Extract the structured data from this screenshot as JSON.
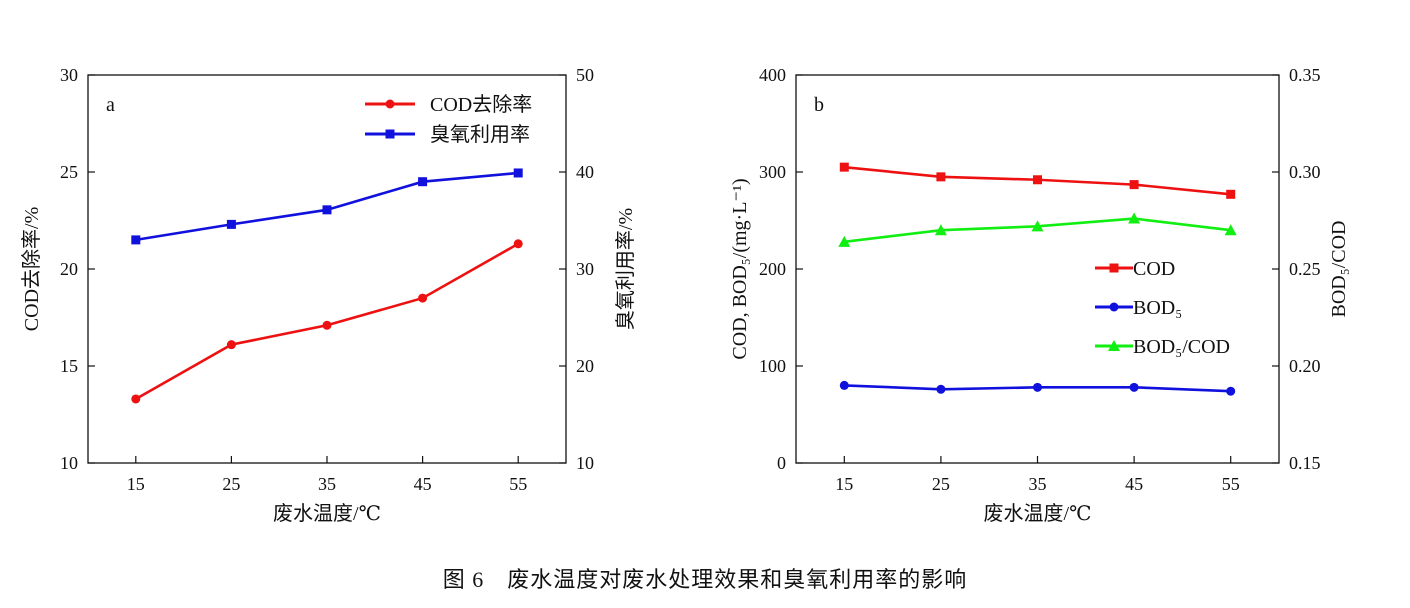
{
  "caption": "图 6　废水温度对废水处理效果和臭氧利用率的影响",
  "chart_data": [
    {
      "type": "line",
      "panel_label": "a",
      "xlabel": "废水温度/℃",
      "ylabel": "COD去除率/%",
      "y2label": "臭氧利用率/%",
      "x": [
        15,
        25,
        35,
        45,
        55
      ],
      "xlim": [
        10,
        60
      ],
      "xticks": [
        15,
        25,
        35,
        45,
        55
      ],
      "ylim": [
        10,
        30
      ],
      "yticks": [
        10,
        15,
        20,
        25,
        30
      ],
      "y2lim": [
        10,
        50
      ],
      "y2ticks": [
        10,
        20,
        30,
        40,
        50
      ],
      "grid": false,
      "legend_placement": "top-right",
      "series": [
        {
          "name": "COD去除率",
          "axis": "left",
          "marker": "circle",
          "color": "#ee1111",
          "values": [
            13.3,
            16.1,
            17.1,
            18.5,
            21.3
          ]
        },
        {
          "name": "臭氧利用率",
          "axis": "right",
          "marker": "square",
          "color": "#1111dd",
          "values": [
            33.0,
            34.6,
            36.1,
            39.0,
            39.9
          ]
        }
      ]
    },
    {
      "type": "line",
      "panel_label": "b",
      "xlabel": "废水温度/℃",
      "ylabel": "COD, BOD₅/(mg·L⁻¹)",
      "y2label": "BOD₅/COD",
      "x": [
        15,
        25,
        35,
        45,
        55
      ],
      "xlim": [
        10,
        60
      ],
      "xticks": [
        15,
        25,
        35,
        45,
        55
      ],
      "ylim": [
        0,
        400
      ],
      "yticks": [
        0,
        100,
        200,
        300,
        400
      ],
      "y2lim": [
        0.15,
        0.35
      ],
      "y2ticks": [
        "0.15",
        "0.20",
        "0.25",
        "0.30",
        "0.35"
      ],
      "grid": false,
      "legend_placement": "center-right",
      "series": [
        {
          "name": "COD",
          "axis": "left",
          "marker": "square",
          "color": "#ee1111",
          "values": [
            305,
            295,
            292,
            287,
            277
          ]
        },
        {
          "name": "BOD₅",
          "axis": "left",
          "marker": "circle",
          "color": "#1111dd",
          "values": [
            80,
            76,
            78,
            78,
            74
          ]
        },
        {
          "name": "BOD₅/COD",
          "axis": "right",
          "marker": "triangle",
          "color": "#11ee11",
          "values": [
            0.264,
            0.27,
            0.272,
            0.276,
            0.27
          ]
        }
      ]
    }
  ]
}
